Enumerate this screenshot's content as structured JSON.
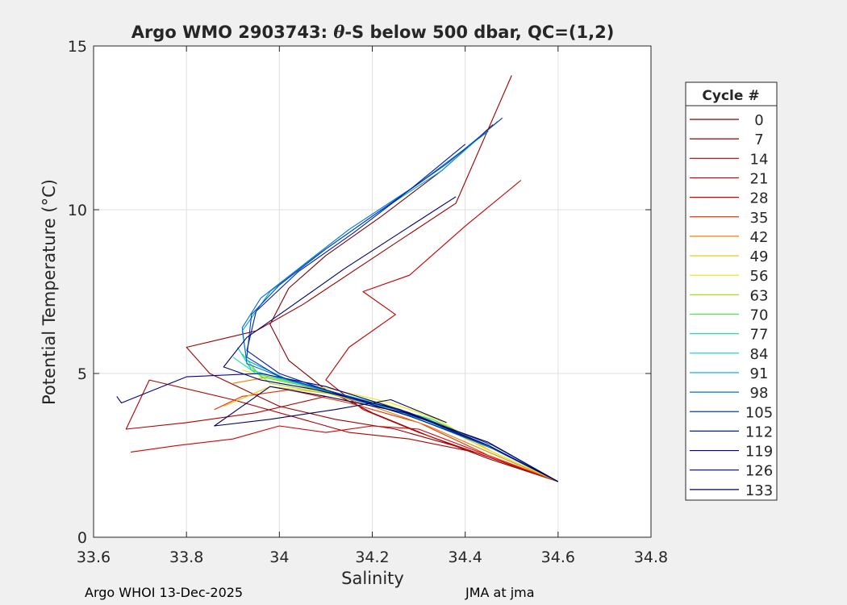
{
  "chart_data": {
    "type": "line",
    "title": "Argo WMO 2903743: θ-S below 500 dbar,  QC=(1,2)",
    "title_parts": {
      "pre": "Argo WMO 2903743: ",
      "sym": "θ",
      "post": "-S below 500 dbar,  QC=(1,2)"
    },
    "xlabel": "Salinity",
    "ylabel": "Potential Temperature (",
    "ylabel_unit": "°C)",
    "xlim": [
      33.6,
      34.8
    ],
    "ylim": [
      0,
      15
    ],
    "xticks": [
      33.6,
      33.8,
      34.0,
      34.2,
      34.4,
      34.6,
      34.8
    ],
    "xtick_labels": [
      "33.6",
      "33.8",
      "34",
      "34.2",
      "34.4",
      "34.6",
      "34.8"
    ],
    "yticks": [
      0,
      5,
      10,
      15
    ],
    "ytick_labels": [
      "0",
      "5",
      "10",
      "15"
    ],
    "grid": true,
    "legend_title": "Cycle #",
    "legend_position": "right",
    "series": [
      {
        "name": "0",
        "color": "#7f0000",
        "points": [
          [
            34.6,
            1.7
          ],
          [
            34.45,
            2.4
          ],
          [
            34.32,
            3.1
          ],
          [
            34.2,
            3.8
          ],
          [
            34.1,
            4.5
          ],
          [
            34.02,
            5.4
          ],
          [
            33.98,
            6.5
          ],
          [
            34.02,
            7.6
          ],
          [
            34.1,
            8.6
          ],
          [
            34.22,
            9.8
          ],
          [
            34.35,
            11.2
          ],
          [
            34.46,
            12.6
          ]
        ]
      },
      {
        "name": "7",
        "color": "#9a0000",
        "points": [
          [
            34.6,
            1.7
          ],
          [
            34.4,
            2.7
          ],
          [
            34.25,
            3.3
          ],
          [
            34.12,
            3.6
          ],
          [
            34.0,
            4.0
          ],
          [
            33.85,
            5.0
          ],
          [
            33.8,
            5.8
          ],
          [
            33.95,
            6.3
          ],
          [
            34.05,
            7.1
          ],
          [
            34.22,
            8.7
          ],
          [
            34.38,
            10.2
          ],
          [
            34.5,
            14.1
          ]
        ]
      },
      {
        "name": "14",
        "color": "#b00000",
        "points": [
          [
            34.6,
            1.7
          ],
          [
            34.42,
            2.6
          ],
          [
            34.28,
            3.0
          ],
          [
            34.15,
            3.2
          ],
          [
            34.05,
            3.6
          ],
          [
            33.9,
            4.2
          ],
          [
            33.72,
            4.8
          ],
          [
            33.67,
            3.3
          ],
          [
            33.8,
            3.5
          ],
          [
            33.95,
            3.8
          ],
          [
            34.1,
            4.3
          ]
        ]
      },
      {
        "name": "21",
        "color": "#c40000",
        "points": [
          [
            34.6,
            1.7
          ],
          [
            34.44,
            2.5
          ],
          [
            34.3,
            3.2
          ],
          [
            34.18,
            3.9
          ],
          [
            34.1,
            4.8
          ],
          [
            34.15,
            5.8
          ],
          [
            34.25,
            6.8
          ],
          [
            34.18,
            7.5
          ],
          [
            34.28,
            8.0
          ],
          [
            34.4,
            9.5
          ],
          [
            34.52,
            10.9
          ]
        ]
      },
      {
        "name": "28",
        "color": "#d80000",
        "points": [
          [
            34.6,
            1.7
          ],
          [
            34.43,
            2.6
          ],
          [
            34.3,
            3.3
          ],
          [
            34.2,
            3.4
          ],
          [
            34.1,
            3.2
          ],
          [
            34.0,
            3.4
          ],
          [
            33.9,
            3.0
          ],
          [
            33.78,
            2.8
          ],
          [
            33.68,
            2.6
          ]
        ]
      },
      {
        "name": "35",
        "color": "#e83000",
        "points": [
          [
            34.6,
            1.7
          ],
          [
            34.45,
            2.5
          ],
          [
            34.3,
            3.5
          ],
          [
            34.15,
            4.1
          ],
          [
            34.02,
            4.5
          ],
          [
            33.92,
            4.3
          ],
          [
            33.86,
            3.9
          ]
        ]
      },
      {
        "name": "42",
        "color": "#f08000",
        "points": [
          [
            34.6,
            1.7
          ],
          [
            34.45,
            2.6
          ],
          [
            34.32,
            3.4
          ],
          [
            34.2,
            4.0
          ],
          [
            34.08,
            4.5
          ],
          [
            33.98,
            4.9
          ],
          [
            33.9,
            4.7
          ]
        ]
      },
      {
        "name": "49",
        "color": "#f0c000",
        "points": [
          [
            34.6,
            1.7
          ],
          [
            34.46,
            2.6
          ],
          [
            34.33,
            3.5
          ],
          [
            34.22,
            4.0
          ],
          [
            34.1,
            4.4
          ],
          [
            33.98,
            4.6
          ],
          [
            33.88,
            4.0
          ]
        ]
      },
      {
        "name": "56",
        "color": "#e8e800",
        "points": [
          [
            34.6,
            1.7
          ],
          [
            34.46,
            2.6
          ],
          [
            34.34,
            3.6
          ],
          [
            34.24,
            4.1
          ],
          [
            34.12,
            4.5
          ],
          [
            34.0,
            4.8
          ],
          [
            33.92,
            5.1
          ]
        ]
      },
      {
        "name": "63",
        "color": "#a0e020",
        "points": [
          [
            34.6,
            1.7
          ],
          [
            34.46,
            2.7
          ],
          [
            34.34,
            3.5
          ],
          [
            34.22,
            4.1
          ],
          [
            34.1,
            4.4
          ],
          [
            33.98,
            4.7
          ],
          [
            33.93,
            5.3
          ]
        ]
      },
      {
        "name": "70",
        "color": "#50e050",
        "points": [
          [
            34.6,
            1.7
          ],
          [
            34.46,
            2.7
          ],
          [
            34.33,
            3.6
          ],
          [
            34.2,
            4.1
          ],
          [
            34.06,
            4.6
          ],
          [
            33.96,
            4.9
          ],
          [
            33.92,
            5.6
          ]
        ]
      },
      {
        "name": "77",
        "color": "#20e0a0",
        "points": [
          [
            34.6,
            1.7
          ],
          [
            34.46,
            2.7
          ],
          [
            34.32,
            3.5
          ],
          [
            34.18,
            4.2
          ],
          [
            34.04,
            4.7
          ],
          [
            33.95,
            5.0
          ],
          [
            33.9,
            5.5
          ]
        ]
      },
      {
        "name": "84",
        "color": "#00d0d0",
        "points": [
          [
            34.6,
            1.7
          ],
          [
            34.46,
            2.7
          ],
          [
            34.32,
            3.6
          ],
          [
            34.18,
            4.2
          ],
          [
            34.04,
            4.7
          ],
          [
            33.94,
            5.1
          ],
          [
            33.91,
            5.8
          ]
        ]
      },
      {
        "name": "91",
        "color": "#00a0e0",
        "points": [
          [
            34.6,
            1.7
          ],
          [
            34.46,
            2.7
          ],
          [
            34.31,
            3.6
          ],
          [
            34.16,
            4.2
          ],
          [
            34.02,
            4.8
          ],
          [
            33.93,
            5.4
          ],
          [
            33.92,
            6.3
          ],
          [
            33.98,
            7.5
          ],
          [
            34.08,
            8.6
          ],
          [
            34.2,
            9.8
          ],
          [
            34.35,
            11.2
          ],
          [
            34.47,
            12.7
          ]
        ]
      },
      {
        "name": "98",
        "color": "#0070d0",
        "points": [
          [
            34.6,
            1.7
          ],
          [
            34.46,
            2.7
          ],
          [
            34.3,
            3.6
          ],
          [
            34.15,
            4.3
          ],
          [
            34.02,
            4.8
          ],
          [
            33.93,
            5.3
          ],
          [
            33.92,
            6.4
          ],
          [
            33.96,
            7.3
          ],
          [
            34.05,
            8.3
          ],
          [
            34.15,
            9.4
          ],
          [
            34.3,
            10.8
          ],
          [
            34.45,
            12.4
          ]
        ]
      },
      {
        "name": "105",
        "color": "#0040c0",
        "points": [
          [
            34.6,
            1.7
          ],
          [
            34.46,
            2.8
          ],
          [
            34.3,
            3.7
          ],
          [
            34.15,
            4.3
          ],
          [
            34.0,
            4.9
          ],
          [
            33.93,
            5.5
          ],
          [
            33.94,
            6.8
          ],
          [
            34.0,
            7.7
          ],
          [
            34.1,
            8.8
          ],
          [
            34.22,
            10.0
          ],
          [
            34.36,
            11.4
          ],
          [
            34.48,
            12.8
          ]
        ]
      },
      {
        "name": "112",
        "color": "#0020a0",
        "points": [
          [
            34.6,
            1.7
          ],
          [
            34.45,
            2.8
          ],
          [
            34.28,
            3.7
          ],
          [
            34.12,
            4.4
          ],
          [
            34.0,
            5.0
          ],
          [
            33.93,
            5.7
          ],
          [
            33.95,
            6.9
          ],
          [
            34.04,
            8.1
          ],
          [
            34.16,
            9.3
          ],
          [
            34.28,
            10.6
          ],
          [
            34.4,
            12.0
          ]
        ]
      },
      {
        "name": "119",
        "color": "#000090",
        "points": [
          [
            34.6,
            1.7
          ],
          [
            34.45,
            2.8
          ],
          [
            34.28,
            3.8
          ],
          [
            34.1,
            4.6
          ],
          [
            33.96,
            5.0
          ],
          [
            33.8,
            4.9
          ],
          [
            33.66,
            4.1
          ],
          [
            33.65,
            4.3
          ]
        ]
      },
      {
        "name": "126",
        "color": "#000070",
        "points": [
          [
            34.6,
            1.7
          ],
          [
            34.45,
            2.8
          ],
          [
            34.26,
            3.9
          ],
          [
            34.08,
            4.5
          ],
          [
            33.96,
            4.8
          ],
          [
            33.88,
            5.2
          ],
          [
            33.93,
            6.1
          ],
          [
            34.02,
            7.0
          ],
          [
            34.14,
            8.2
          ],
          [
            34.26,
            9.3
          ],
          [
            34.38,
            10.4
          ]
        ]
      },
      {
        "name": "133",
        "color": "#000060",
        "points": [
          [
            34.6,
            1.7
          ],
          [
            34.45,
            2.9
          ],
          [
            34.27,
            3.8
          ],
          [
            34.1,
            4.3
          ],
          [
            33.98,
            4.6
          ],
          [
            33.86,
            3.4
          ],
          [
            33.98,
            3.6
          ],
          [
            34.12,
            3.9
          ],
          [
            34.24,
            4.2
          ],
          [
            34.36,
            3.5
          ]
        ]
      }
    ]
  },
  "footer": {
    "left": "Argo WHOI 13-Dec-2025",
    "right": "JMA at jma"
  }
}
